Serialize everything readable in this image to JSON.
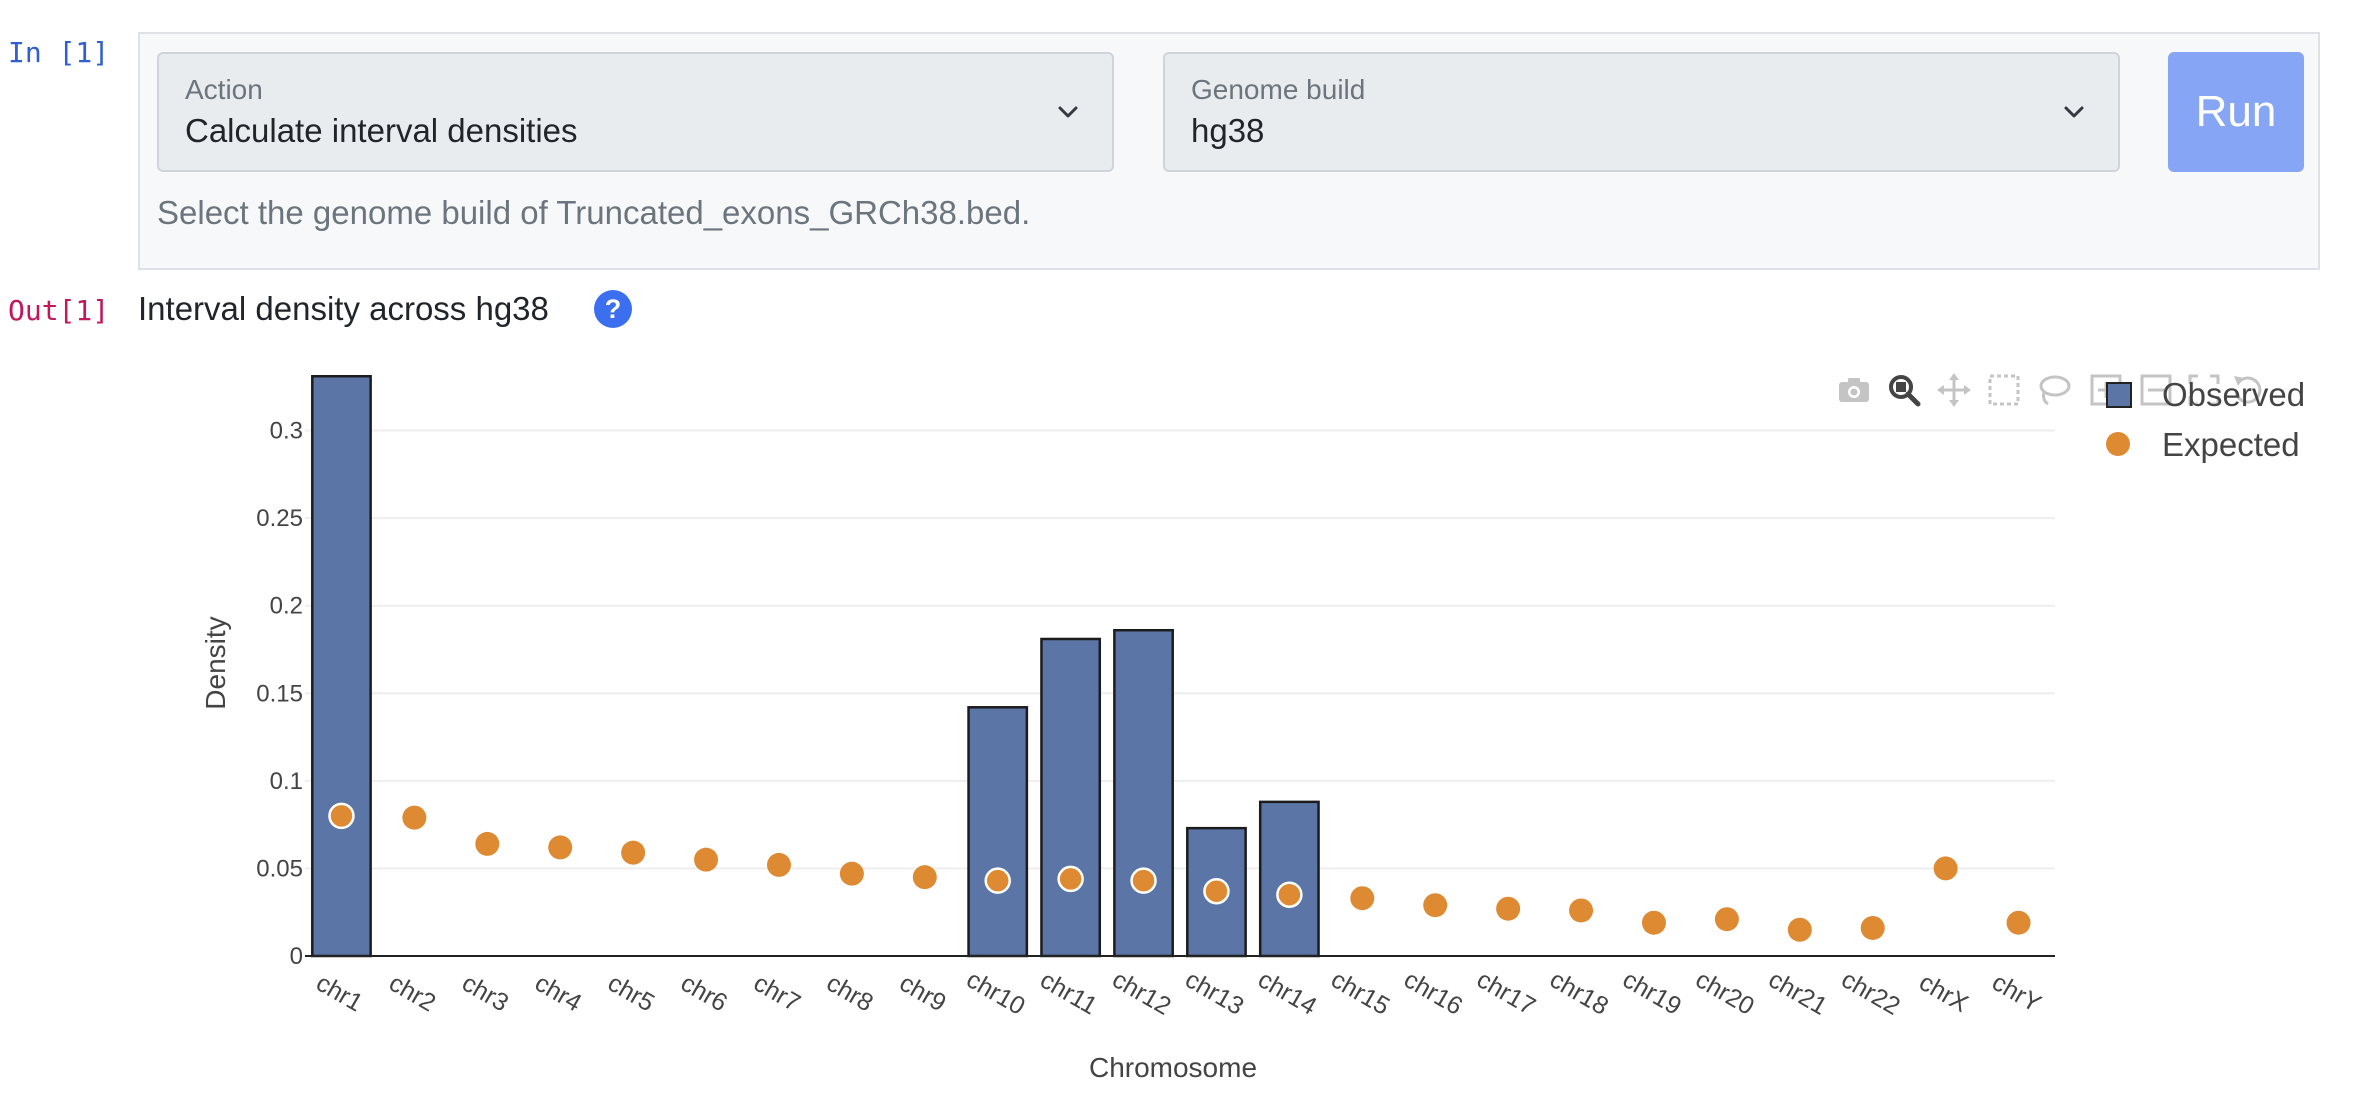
{
  "notebook": {
    "in_prompt": "In [1]",
    "out_prompt": "Out[1]"
  },
  "form": {
    "action_label": "Action",
    "action_value": "Calculate interval densities",
    "build_label": "Genome build",
    "build_value": "hg38",
    "run_label": "Run",
    "helper_text": "Select the genome build of Truncated_exons_GRCh38.bed."
  },
  "output": {
    "title": "Interval density across hg38",
    "help_glyph": "?"
  },
  "modebar": {
    "icons": [
      "camera-icon",
      "zoom-icon",
      "pan-icon",
      "box-select-icon",
      "lasso-select-icon",
      "zoom-in-icon",
      "zoom-out-icon",
      "autoscale-icon",
      "reset-axes-icon"
    ]
  },
  "colors": {
    "observed": "#5a75a6",
    "expected": "#de8a33",
    "run_button": "#86a5f5",
    "help_icon": "#3b6ff0"
  },
  "chart_data": {
    "type": "bar",
    "title": "",
    "xlabel": "Chromosome",
    "ylabel": "Density",
    "ylim": [
      0,
      0.33
    ],
    "yticks": [
      0,
      0.05,
      0.1,
      0.15,
      0.2,
      0.25,
      0.3
    ],
    "ytick_labels": [
      "0",
      "0.05",
      "0.1",
      "0.15",
      "0.2",
      "0.25",
      "0.3"
    ],
    "grid": true,
    "legend_position": "top-right",
    "categories": [
      "chr1",
      "chr2",
      "chr3",
      "chr4",
      "chr5",
      "chr6",
      "chr7",
      "chr8",
      "chr9",
      "chr10",
      "chr11",
      "chr12",
      "chr13",
      "chr14",
      "chr15",
      "chr16",
      "chr17",
      "chr18",
      "chr19",
      "chr20",
      "chr21",
      "chr22",
      "chrX",
      "chrY"
    ],
    "series": [
      {
        "name": "Observed",
        "type": "bar",
        "values": [
          0.331,
          0,
          0,
          0,
          0,
          0,
          0,
          0,
          0,
          0.142,
          0.181,
          0.186,
          0.073,
          0.088,
          0,
          0,
          0,
          0,
          0,
          0,
          0,
          0,
          0,
          0
        ]
      },
      {
        "name": "Expected",
        "type": "scatter",
        "values": [
          0.08,
          0.079,
          0.064,
          0.062,
          0.059,
          0.055,
          0.052,
          0.047,
          0.045,
          0.043,
          0.044,
          0.043,
          0.037,
          0.035,
          0.033,
          0.029,
          0.027,
          0.026,
          0.019,
          0.021,
          0.015,
          0.016,
          0.05,
          0.019
        ]
      }
    ]
  }
}
